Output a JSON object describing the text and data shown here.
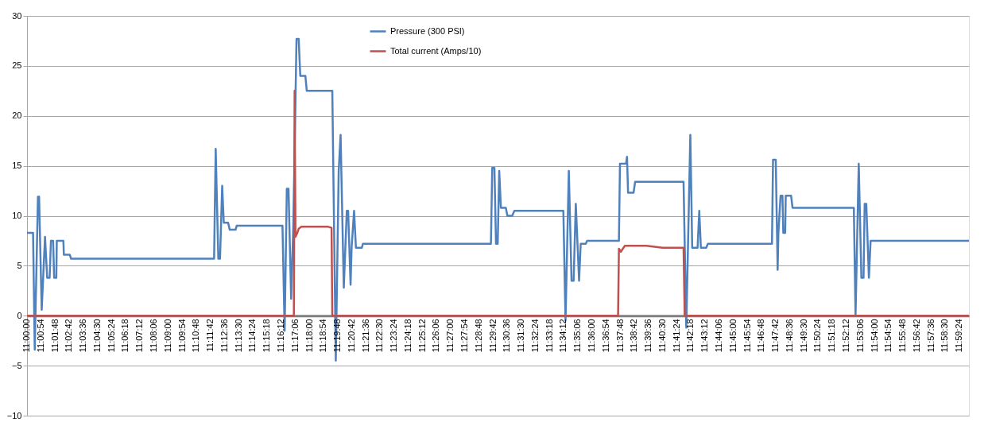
{
  "chart_data": {
    "type": "line",
    "xlim": [
      11,
      12
    ],
    "ylim": [
      -10,
      30
    ],
    "yticks": [
      -10,
      -5,
      0,
      5,
      10,
      15,
      20,
      25,
      30
    ],
    "xticks": [
      {
        "value": 11.0,
        "label": "11:00:00"
      },
      {
        "value": 11.015,
        "label": "11:00:54"
      },
      {
        "value": 11.03,
        "label": "11:01:48"
      },
      {
        "value": 11.045,
        "label": "11:02:42"
      },
      {
        "value": 11.06,
        "label": "11:03:36"
      },
      {
        "value": 11.075,
        "label": "11:04:30"
      },
      {
        "value": 11.09,
        "label": "11:05:24"
      },
      {
        "value": 11.105,
        "label": "11:06:18"
      },
      {
        "value": 11.12,
        "label": "11:07:12"
      },
      {
        "value": 11.135,
        "label": "11:08:06"
      },
      {
        "value": 11.15,
        "label": "11:09:00"
      },
      {
        "value": 11.165,
        "label": "11:09:54"
      },
      {
        "value": 11.18,
        "label": "11:10:48"
      },
      {
        "value": 11.195,
        "label": "11:11:42"
      },
      {
        "value": 11.21,
        "label": "11:12:36"
      },
      {
        "value": 11.225,
        "label": "11:13:30"
      },
      {
        "value": 11.24,
        "label": "11:14:24"
      },
      {
        "value": 11.255,
        "label": "11:15:18"
      },
      {
        "value": 11.27,
        "label": "11:16:12"
      },
      {
        "value": 11.285,
        "label": "11:17:06"
      },
      {
        "value": 11.3,
        "label": "11:18:00"
      },
      {
        "value": 11.315,
        "label": "11:18:54"
      },
      {
        "value": 11.33,
        "label": "11:19:48"
      },
      {
        "value": 11.345,
        "label": "11:20:42"
      },
      {
        "value": 11.36,
        "label": "11:21:36"
      },
      {
        "value": 11.375,
        "label": "11:22:30"
      },
      {
        "value": 11.39,
        "label": "11:23:24"
      },
      {
        "value": 11.405,
        "label": "11:24:18"
      },
      {
        "value": 11.42,
        "label": "11:25:12"
      },
      {
        "value": 11.435,
        "label": "11:26:06"
      },
      {
        "value": 11.45,
        "label": "11:27:00"
      },
      {
        "value": 11.465,
        "label": "11:27:54"
      },
      {
        "value": 11.48,
        "label": "11:28:48"
      },
      {
        "value": 11.495,
        "label": "11:29:42"
      },
      {
        "value": 11.51,
        "label": "11:30:36"
      },
      {
        "value": 11.525,
        "label": "11:31:30"
      },
      {
        "value": 11.54,
        "label": "11:32:24"
      },
      {
        "value": 11.555,
        "label": "11:33:18"
      },
      {
        "value": 11.57,
        "label": "11:34:12"
      },
      {
        "value": 11.585,
        "label": "11:35:06"
      },
      {
        "value": 11.6,
        "label": "11:36:00"
      },
      {
        "value": 11.615,
        "label": "11:36:54"
      },
      {
        "value": 11.63,
        "label": "11:37:48"
      },
      {
        "value": 11.645,
        "label": "11:38:42"
      },
      {
        "value": 11.66,
        "label": "11:39:36"
      },
      {
        "value": 11.675,
        "label": "11:40:30"
      },
      {
        "value": 11.69,
        "label": "11:41:24"
      },
      {
        "value": 11.705,
        "label": "11:42:18"
      },
      {
        "value": 11.72,
        "label": "11:43:12"
      },
      {
        "value": 11.735,
        "label": "11:44:06"
      },
      {
        "value": 11.75,
        "label": "11:45:00"
      },
      {
        "value": 11.765,
        "label": "11:45:54"
      },
      {
        "value": 11.78,
        "label": "11:46:48"
      },
      {
        "value": 11.795,
        "label": "11:47:42"
      },
      {
        "value": 11.81,
        "label": "11:48:36"
      },
      {
        "value": 11.825,
        "label": "11:49:30"
      },
      {
        "value": 11.84,
        "label": "11:50:24"
      },
      {
        "value": 11.855,
        "label": "11:51:18"
      },
      {
        "value": 11.87,
        "label": "11:52:12"
      },
      {
        "value": 11.885,
        "label": "11:53:06"
      },
      {
        "value": 11.9,
        "label": "11:54:00"
      },
      {
        "value": 11.915,
        "label": "11:54:54"
      },
      {
        "value": 11.93,
        "label": "11:55:48"
      },
      {
        "value": 11.945,
        "label": "11:56:42"
      },
      {
        "value": 11.96,
        "label": "11:57:36"
      },
      {
        "value": 11.975,
        "label": "11:58:30"
      },
      {
        "value": 11.99,
        "label": "11:59:24"
      }
    ],
    "grid": "y",
    "legend": "top",
    "marker": "none",
    "line_style": "solid",
    "series": [
      {
        "name": "Pressure (300 PSI)",
        "color": "#4f81bd",
        "x": [
          11.0,
          11.0064,
          11.0082,
          11.0116,
          11.0128,
          11.0156,
          11.0191,
          11.0214,
          11.024,
          11.0254,
          11.0277,
          11.0288,
          11.0311,
          11.0316,
          11.0386,
          11.0391,
          11.0454,
          11.0468,
          11.1986,
          11.2003,
          11.2031,
          11.2049,
          11.2072,
          11.2089,
          11.2135,
          11.2152,
          11.2214,
          11.2226,
          11.2712,
          11.2735,
          11.2758,
          11.2776,
          11.2804,
          11.2827,
          11.2861,
          11.2884,
          11.2901,
          11.2955,
          11.297,
          11.3241,
          11.3278,
          11.3309,
          11.3329,
          11.3363,
          11.3395,
          11.3409,
          11.3435,
          11.3446,
          11.3472,
          11.3492,
          11.3555,
          11.3566,
          11.4925,
          11.4939,
          11.4962,
          11.4979,
          11.4997,
          11.5013,
          11.5031,
          11.5083,
          11.51,
          11.5151,
          11.5174,
          11.5694,
          11.5717,
          11.5752,
          11.5781,
          11.5803,
          11.5826,
          11.5861,
          11.5878,
          11.5932,
          11.5946,
          11.6284,
          11.6295,
          11.6359,
          11.637,
          11.6381,
          11.6439,
          11.6456,
          11.697,
          11.6999,
          11.7042,
          11.7062,
          11.7119,
          11.7137,
          11.7154,
          11.7211,
          11.7228,
          11.7909,
          11.792,
          11.7949,
          11.7969,
          11.7977,
          11.8,
          11.802,
          11.8029,
          11.8049,
          11.8055,
          11.8112,
          11.8127,
          11.8778,
          11.8796,
          11.883,
          11.8858,
          11.8881,
          11.8893,
          11.891,
          11.8938,
          11.8956,
          12.0
        ],
        "values": [
          8.3,
          8.3,
          -3.4,
          11.9,
          11.9,
          0.6,
          7.9,
          3.8,
          3.8,
          7.5,
          7.5,
          3.8,
          3.8,
          7.5,
          7.5,
          6.1,
          6.1,
          5.7,
          5.7,
          16.7,
          5.7,
          5.7,
          13.0,
          9.3,
          9.3,
          8.6,
          8.6,
          9.0,
          9.0,
          -1.5,
          12.7,
          12.7,
          1.7,
          9.0,
          27.7,
          27.7,
          24.0,
          24.0,
          22.5,
          22.5,
          -4.5,
          14.5,
          18.1,
          2.8,
          10.5,
          10.5,
          3.1,
          6.8,
          10.5,
          6.8,
          6.8,
          7.2,
          7.2,
          14.8,
          14.8,
          7.2,
          7.2,
          14.5,
          10.8,
          10.8,
          10.0,
          10.0,
          10.5,
          10.5,
          -0.5,
          14.5,
          3.5,
          3.5,
          11.2,
          3.5,
          7.2,
          7.2,
          7.5,
          7.5,
          15.2,
          15.2,
          15.9,
          12.3,
          12.3,
          13.4,
          13.4,
          -1.2,
          18.1,
          6.8,
          6.8,
          10.5,
          6.8,
          6.8,
          7.2,
          7.2,
          15.6,
          15.6,
          4.6,
          8.3,
          12.0,
          12.0,
          8.3,
          8.3,
          12.0,
          12.0,
          10.8,
          10.8,
          0.0,
          15.2,
          3.8,
          3.8,
          11.2,
          11.2,
          3.8,
          7.5,
          7.5
        ]
      },
      {
        "name": "Total current (Amps/10)",
        "color": "#c0504d",
        "x": [
          11.0,
          11.2833,
          11.2841,
          11.285,
          11.287,
          11.2884,
          11.2913,
          11.3198,
          11.3233,
          11.3241,
          11.6275,
          11.6284,
          11.6304,
          11.6347,
          11.6576,
          11.6748,
          11.697,
          11.6982,
          12.0
        ],
        "values": [
          0,
          0,
          22.5,
          7.9,
          8.3,
          8.7,
          8.9,
          8.9,
          8.8,
          0,
          0,
          6.7,
          6.4,
          7.0,
          7.0,
          6.8,
          6.8,
          0,
          0
        ]
      }
    ]
  }
}
